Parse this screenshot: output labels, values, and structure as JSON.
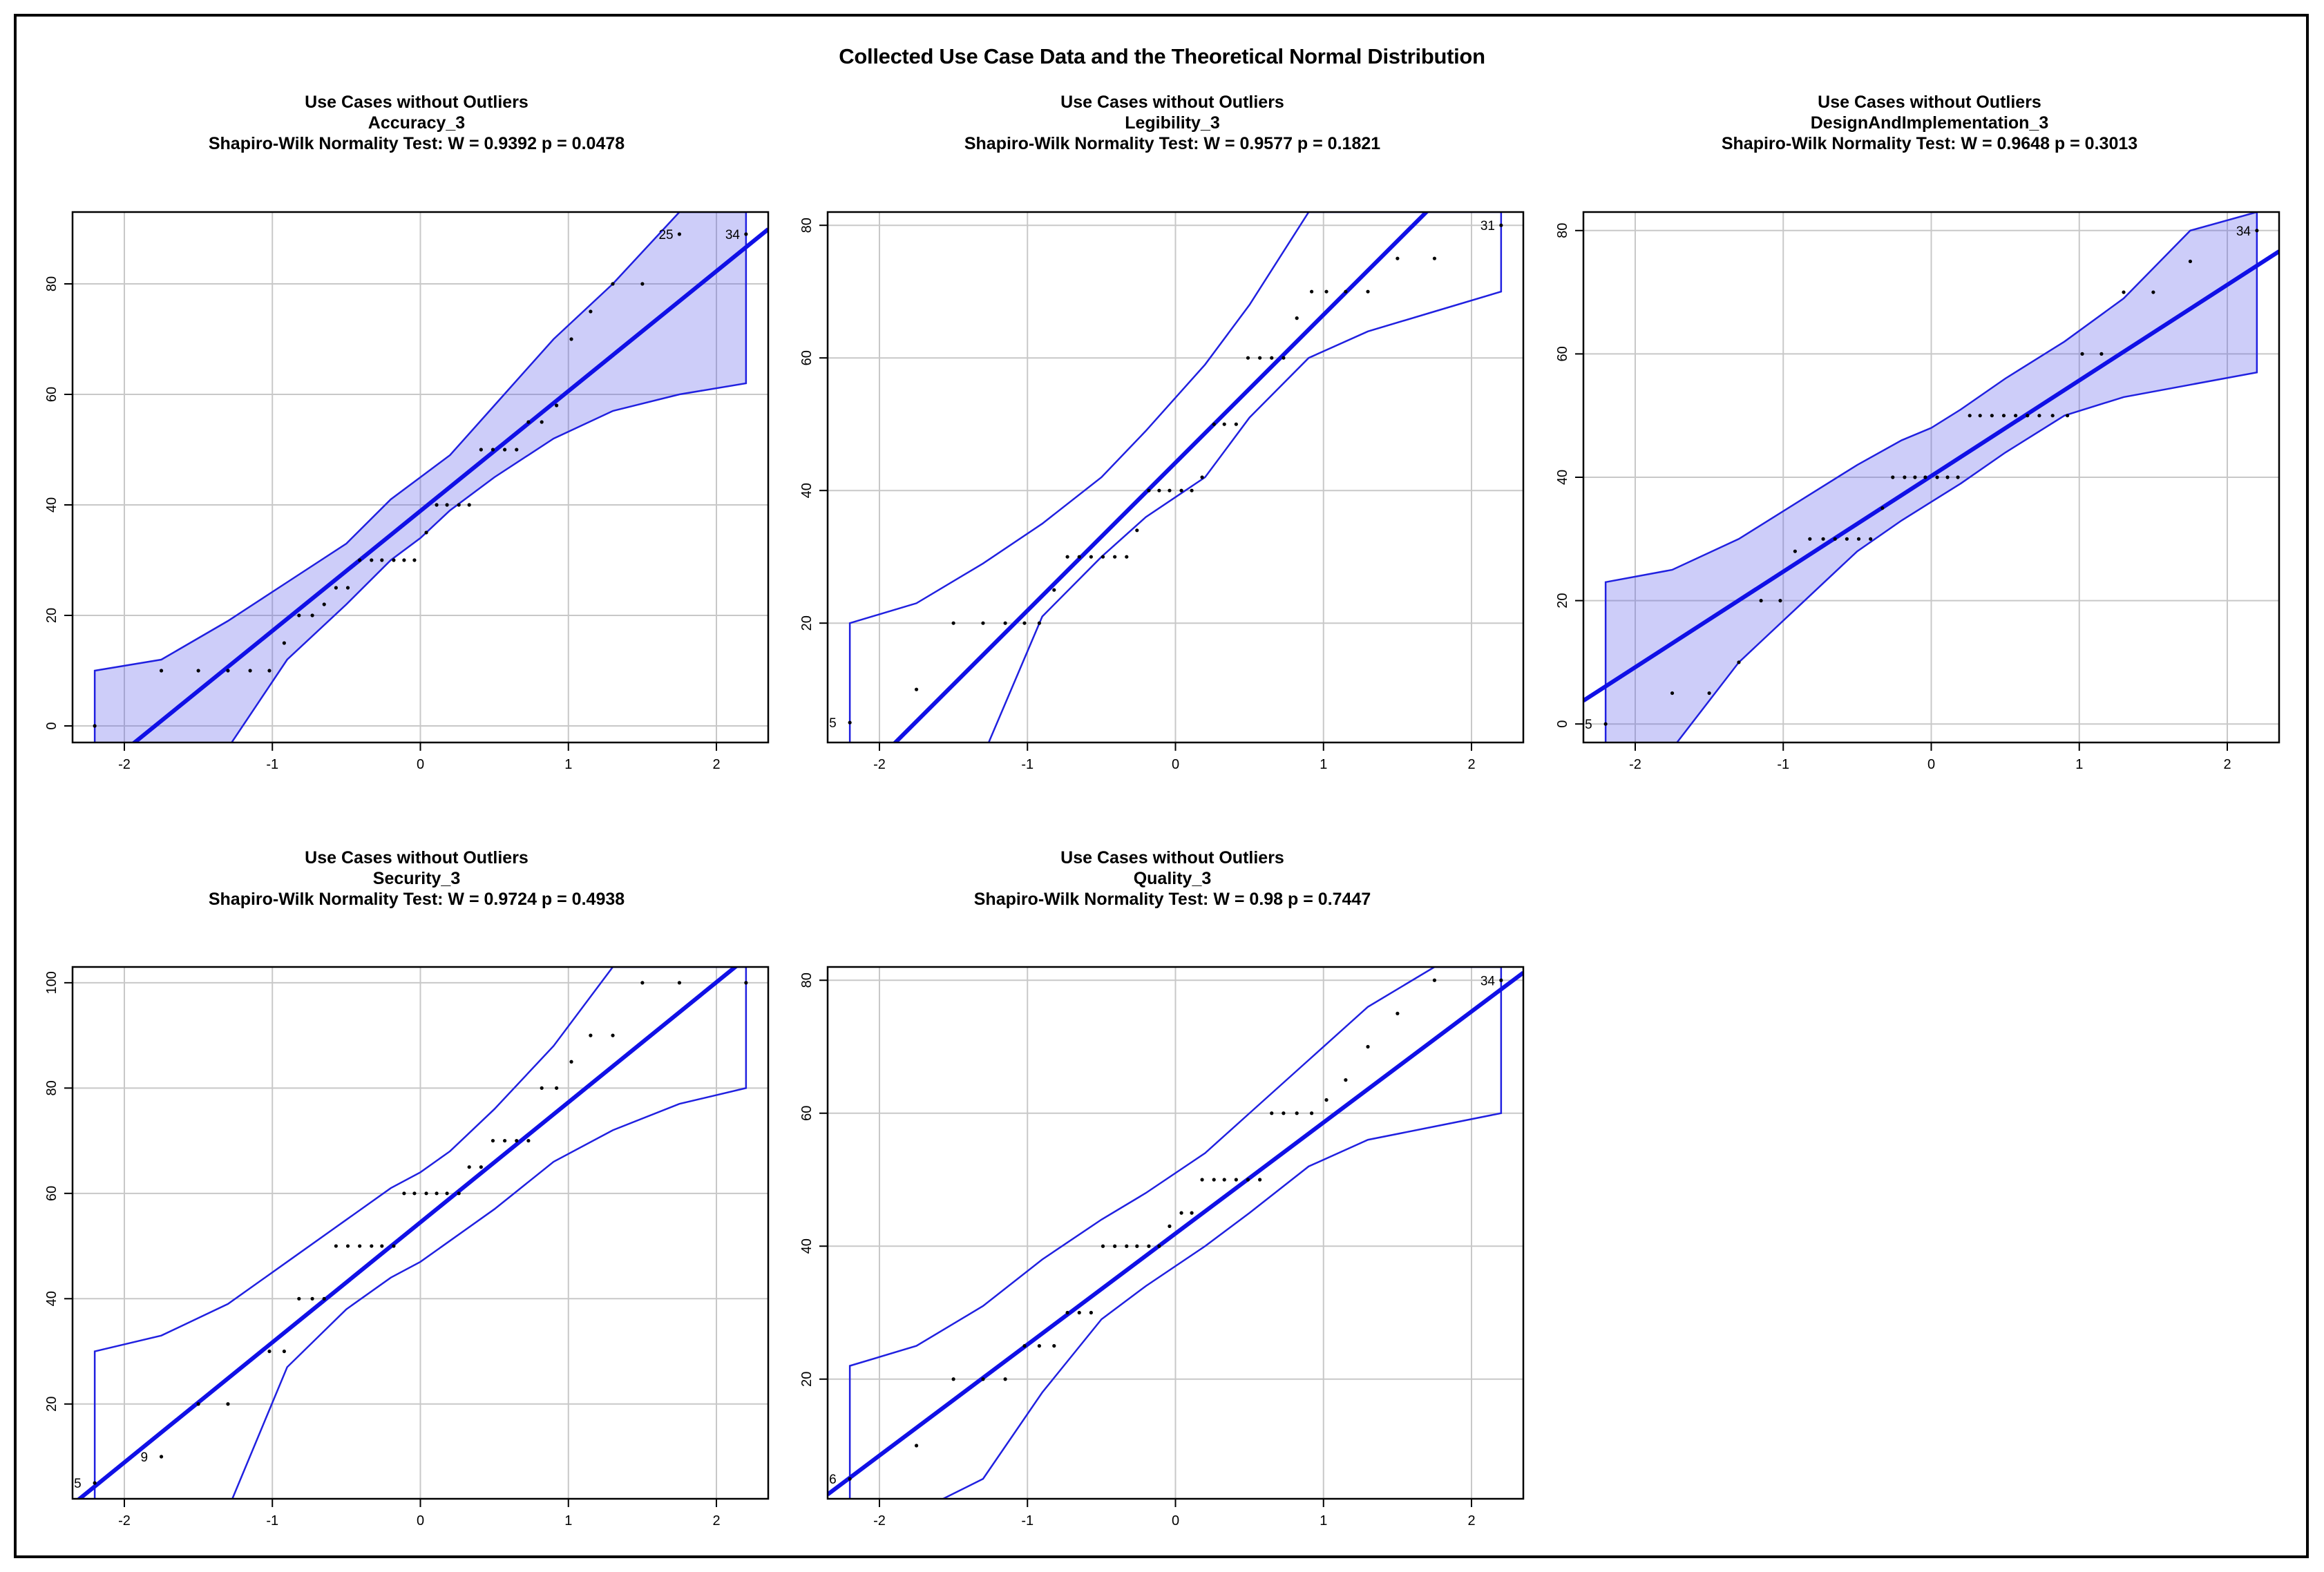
{
  "title": "Collected Use Case Data and the Theoretical Normal Distribution",
  "panels": [
    {
      "line1": "Use Cases without Outliers",
      "line2": "Accuracy_3",
      "line3": "Shapiro-Wilk Normality Test: W = 0.9392 p = 0.0478"
    },
    {
      "line1": "Use Cases without Outliers",
      "line2": "Legibility_3",
      "line3": "Shapiro-Wilk Normality Test: W = 0.9577 p = 0.1821"
    },
    {
      "line1": "Use Cases without Outliers",
      "line2": "DesignAndImplementation_3",
      "line3": "Shapiro-Wilk Normality Test: W = 0.9648 p = 0.3013"
    },
    {
      "line1": "Use Cases without Outliers",
      "line2": "Security_3",
      "line3": "Shapiro-Wilk Normality Test: W = 0.9724 p = 0.4938"
    },
    {
      "line1": "Use Cases without Outliers",
      "line2": "Quality_3",
      "line3": "Shapiro-Wilk Normality Test: W = 0.98 p = 0.7447"
    }
  ],
  "chart_data": [
    {
      "type": "scatter",
      "title": "Accuracy_3",
      "xlim": [
        -2.35,
        2.35
      ],
      "ylim": [
        -3,
        93
      ],
      "xticks": [
        -2,
        -1,
        0,
        1,
        2
      ],
      "yticks": [
        0,
        20,
        40,
        60,
        80
      ],
      "grid": true,
      "x": [
        -2.2,
        -1.75,
        -1.5,
        -1.3,
        -1.15,
        -1.02,
        -0.92,
        -0.82,
        -0.73,
        -0.65,
        -0.57,
        -0.49,
        -0.41,
        -0.33,
        -0.26,
        -0.18,
        -0.11,
        -0.04,
        0.04,
        0.11,
        0.18,
        0.26,
        0.33,
        0.41,
        0.49,
        0.57,
        0.65,
        0.73,
        0.82,
        0.92,
        1.02,
        1.15,
        1.3,
        1.5,
        1.75,
        2.2
      ],
      "y": [
        0,
        10,
        10,
        10,
        10,
        10,
        15,
        20,
        20,
        22,
        25,
        25,
        30,
        30,
        30,
        30,
        30,
        30,
        35,
        40,
        40,
        40,
        40,
        50,
        50,
        50,
        50,
        55,
        55,
        58,
        70,
        75,
        80,
        80,
        89,
        89
      ],
      "point_labels": [
        {
          "x": 1.75,
          "y": 89,
          "text": "25"
        },
        {
          "x": 2.2,
          "y": 89,
          "text": "34"
        }
      ],
      "line": {
        "intercept": 38.9,
        "slope": 21.7
      },
      "envelope": {
        "x": [
          -2.2,
          -1.75,
          -1.3,
          -0.9,
          -0.5,
          -0.2,
          0.0,
          0.2,
          0.5,
          0.9,
          1.3,
          1.75,
          2.2
        ],
        "lower": [
          -4,
          -4,
          -4,
          12,
          22,
          30,
          34,
          39,
          45,
          52,
          57,
          60,
          62
        ],
        "upper": [
          10,
          12,
          19,
          26,
          33,
          41,
          45,
          49,
          58,
          70,
          80,
          93,
          93
        ]
      }
    },
    {
      "type": "scatter",
      "title": "Legibility_3",
      "xlim": [
        -2.35,
        2.35
      ],
      "ylim": [
        2,
        82
      ],
      "xticks": [
        -2,
        -1,
        0,
        1,
        2
      ],
      "yticks": [
        20,
        40,
        60,
        80
      ],
      "grid": true,
      "x": [
        -2.2,
        -1.75,
        -1.5,
        -1.3,
        -1.15,
        -1.02,
        -0.92,
        -0.82,
        -0.73,
        -0.65,
        -0.57,
        -0.49,
        -0.41,
        -0.33,
        -0.26,
        -0.18,
        -0.11,
        -0.04,
        0.04,
        0.11,
        0.18,
        0.26,
        0.33,
        0.41,
        0.49,
        0.57,
        0.65,
        0.73,
        0.82,
        0.92,
        1.02,
        1.15,
        1.3,
        1.5,
        1.75,
        2.2
      ],
      "y": [
        5,
        10,
        20,
        20,
        20,
        20,
        20,
        25,
        30,
        30,
        30,
        30,
        30,
        30,
        34,
        40,
        40,
        40,
        40,
        40,
        42,
        50,
        50,
        50,
        60,
        60,
        60,
        60,
        66,
        70,
        70,
        70,
        70,
        75,
        75,
        80
      ],
      "point_labels": [
        {
          "x": -2.2,
          "y": 5,
          "text": "5"
        },
        {
          "x": 2.2,
          "y": 80,
          "text": "31"
        }
      ],
      "line": {
        "intercept": 44.2,
        "slope": 22.3
      },
      "envelope": {
        "x": [
          -2.2,
          -1.75,
          -1.3,
          -0.9,
          -0.5,
          -0.2,
          0.0,
          0.2,
          0.5,
          0.9,
          1.3,
          1.75,
          2.2
        ],
        "lower": [
          0,
          0,
          0,
          21,
          30,
          36,
          39,
          42,
          51,
          60,
          64,
          67,
          70
        ],
        "upper": [
          20,
          23,
          29,
          35,
          42,
          49,
          54,
          59,
          68,
          82,
          82,
          82,
          82
        ]
      }
    },
    {
      "type": "scatter",
      "title": "DesignAndImplementation_3",
      "xlim": [
        -2.35,
        2.35
      ],
      "ylim": [
        -3,
        83
      ],
      "xticks": [
        -2,
        -1,
        0,
        1,
        2
      ],
      "yticks": [
        0,
        20,
        40,
        60,
        80
      ],
      "grid": true,
      "x": [
        -2.2,
        -1.75,
        -1.5,
        -1.3,
        -1.15,
        -1.02,
        -0.92,
        -0.82,
        -0.73,
        -0.65,
        -0.57,
        -0.49,
        -0.41,
        -0.33,
        -0.26,
        -0.18,
        -0.11,
        -0.04,
        0.04,
        0.11,
        0.18,
        0.26,
        0.33,
        0.41,
        0.49,
        0.57,
        0.65,
        0.73,
        0.82,
        0.92,
        1.02,
        1.15,
        1.3,
        1.5,
        1.75,
        2.2
      ],
      "y": [
        0,
        5,
        5,
        10,
        20,
        20,
        28,
        30,
        30,
        30,
        30,
        30,
        30,
        35,
        40,
        40,
        40,
        40,
        40,
        40,
        40,
        50,
        50,
        50,
        50,
        50,
        50,
        50,
        50,
        50,
        60,
        60,
        70,
        70,
        75,
        80
      ],
      "point_labels": [
        {
          "x": -2.2,
          "y": 0,
          "text": "5"
        },
        {
          "x": 2.2,
          "y": 80,
          "text": "34"
        }
      ],
      "line": {
        "intercept": 40.2,
        "slope": 15.5
      },
      "envelope": {
        "x": [
          -2.2,
          -1.75,
          -1.3,
          -0.9,
          -0.5,
          -0.2,
          0.0,
          0.2,
          0.5,
          0.9,
          1.3,
          1.75,
          2.2
        ],
        "lower": [
          -4,
          -4,
          10,
          19,
          28,
          33,
          36,
          39,
          44,
          50,
          53,
          55,
          57
        ],
        "upper": [
          23,
          25,
          30,
          36,
          42,
          46,
          48,
          51,
          56,
          62,
          69,
          80,
          83
        ]
      }
    },
    {
      "type": "scatter",
      "title": "Security_3",
      "xlim": [
        -2.35,
        2.35
      ],
      "ylim": [
        2,
        103
      ],
      "xticks": [
        -2,
        -1,
        0,
        1,
        2
      ],
      "yticks": [
        20,
        40,
        60,
        80,
        100
      ],
      "grid": true,
      "x": [
        -2.2,
        -1.75,
        -1.5,
        -1.3,
        -1.02,
        -0.92,
        -0.82,
        -0.73,
        -0.65,
        -0.57,
        -0.49,
        -0.41,
        -0.33,
        -0.26,
        -0.18,
        -0.11,
        -0.04,
        0.04,
        0.11,
        0.18,
        0.26,
        0.33,
        0.41,
        0.49,
        0.57,
        0.65,
        0.73,
        0.82,
        0.92,
        1.02,
        1.15,
        1.3,
        1.5,
        1.75,
        2.2
      ],
      "y": [
        5,
        10,
        20,
        20,
        30,
        30,
        40,
        40,
        40,
        50,
        50,
        50,
        50,
        50,
        50,
        60,
        60,
        60,
        60,
        60,
        60,
        65,
        65,
        70,
        70,
        70,
        70,
        80,
        80,
        85,
        90,
        90,
        100,
        100,
        100
      ],
      "point_labels": [
        {
          "x": -2.2,
          "y": 5,
          "text": "5"
        },
        {
          "x": -1.75,
          "y": 10,
          "text": "9"
        }
      ],
      "line": {
        "intercept": 54.5,
        "slope": 22.8
      },
      "envelope": {
        "x": [
          -2.2,
          -1.75,
          -1.3,
          -0.9,
          -0.5,
          -0.2,
          0.0,
          0.2,
          0.5,
          0.9,
          1.3,
          1.75,
          2.2
        ],
        "lower": [
          0,
          0,
          0,
          27,
          38,
          44,
          47,
          51,
          57,
          66,
          72,
          77,
          80
        ],
        "upper": [
          30,
          33,
          39,
          47,
          55,
          61,
          64,
          68,
          76,
          88,
          103,
          103,
          103
        ]
      }
    },
    {
      "type": "scatter",
      "title": "Quality_3",
      "xlim": [
        -2.35,
        2.35
      ],
      "ylim": [
        2,
        82
      ],
      "xticks": [
        -2,
        -1,
        0,
        1,
        2
      ],
      "yticks": [
        20,
        40,
        60,
        80
      ],
      "grid": true,
      "x": [
        -2.2,
        -1.75,
        -1.5,
        -1.3,
        -1.15,
        -1.02,
        -0.92,
        -0.82,
        -0.73,
        -0.65,
        -0.57,
        -0.49,
        -0.41,
        -0.33,
        -0.26,
        -0.18,
        -0.11,
        -0.04,
        0.04,
        0.11,
        0.18,
        0.26,
        0.33,
        0.41,
        0.49,
        0.57,
        0.65,
        0.73,
        0.82,
        0.92,
        1.02,
        1.15,
        1.3,
        1.5,
        1.75,
        2.2
      ],
      "y": [
        5,
        10,
        20,
        20,
        20,
        25,
        25,
        25,
        30,
        30,
        30,
        40,
        40,
        40,
        40,
        40,
        40,
        43,
        45,
        45,
        50,
        50,
        50,
        50,
        50,
        50,
        60,
        60,
        60,
        60,
        62,
        65,
        70,
        75,
        80,
        80
      ],
      "point_labels": [
        {
          "x": -2.2,
          "y": 5,
          "text": "6"
        },
        {
          "x": 2.2,
          "y": 80,
          "text": "34"
        }
      ],
      "line": {
        "intercept": 41.9,
        "slope": 16.7
      },
      "envelope": {
        "x": [
          -2.2,
          -1.75,
          -1.3,
          -0.9,
          -0.5,
          -0.2,
          0.0,
          0.2,
          0.5,
          0.9,
          1.3,
          1.75,
          2.2
        ],
        "lower": [
          0,
          0,
          5,
          18,
          29,
          34,
          37,
          40,
          45,
          52,
          56,
          58,
          60
        ],
        "upper": [
          22,
          25,
          31,
          38,
          44,
          48,
          51,
          54,
          60,
          68,
          76,
          82,
          82
        ]
      }
    }
  ]
}
